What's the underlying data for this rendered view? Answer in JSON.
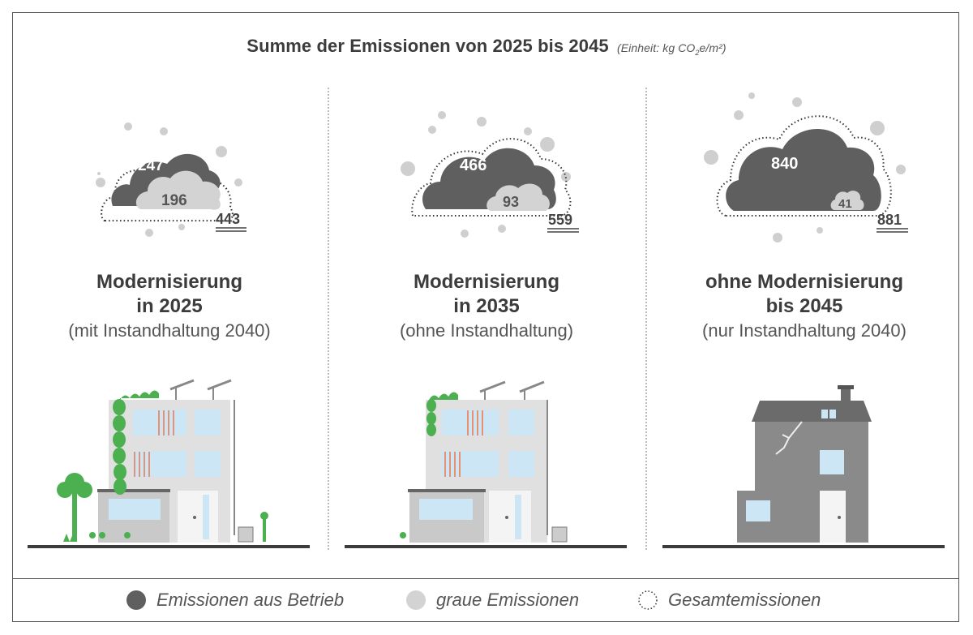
{
  "title": {
    "main": "Summe der Emissionen von 2025 bis 2045",
    "unit_prefix": "(Einheit: kg CO",
    "unit_sub": "2",
    "unit_suffix": "e/m²)"
  },
  "colors": {
    "operational": "#5f5f5f",
    "grey": "#d3d3d3",
    "bubble": "#cfcfcf",
    "ground": "#3c3c3c"
  },
  "chart_data": {
    "type": "bar",
    "title": "Summe der Emissionen von 2025 bis 2045",
    "unit": "kg CO2e/m²",
    "categories": [
      "Modernisierung in 2025 (mit Instandhaltung 2040)",
      "Modernisierung in 2035 (ohne Instandhaltung)",
      "ohne Modernisierung bis 2045 (nur Instandhaltung 2040)"
    ],
    "series": [
      {
        "name": "Emissionen aus Betrieb",
        "values": [
          247,
          466,
          840
        ]
      },
      {
        "name": "graue Emissionen",
        "values": [
          196,
          93,
          41
        ]
      },
      {
        "name": "Gesamtemissionen",
        "values": [
          443,
          559,
          881
        ]
      }
    ]
  },
  "scenarios": [
    {
      "operational": "247",
      "grey": "196",
      "total": "443",
      "line1": "Modernisierung",
      "line2": "in 2025",
      "line3": "(mit Instandhaltung 2040)"
    },
    {
      "operational": "466",
      "grey": "93",
      "total": "559",
      "line1": "Modernisierung",
      "line2": "in 2035",
      "line3": "(ohne Instandhaltung)"
    },
    {
      "operational": "840",
      "grey": "41",
      "total": "881",
      "line1": "ohne Modernisierung",
      "line2": "bis 2045",
      "line3": "(nur Instandhaltung 2040)"
    }
  ],
  "legend": {
    "operational": "Emissionen aus Betrieb",
    "grey": "graue Emissionen",
    "total": "Gesamtemissionen"
  }
}
